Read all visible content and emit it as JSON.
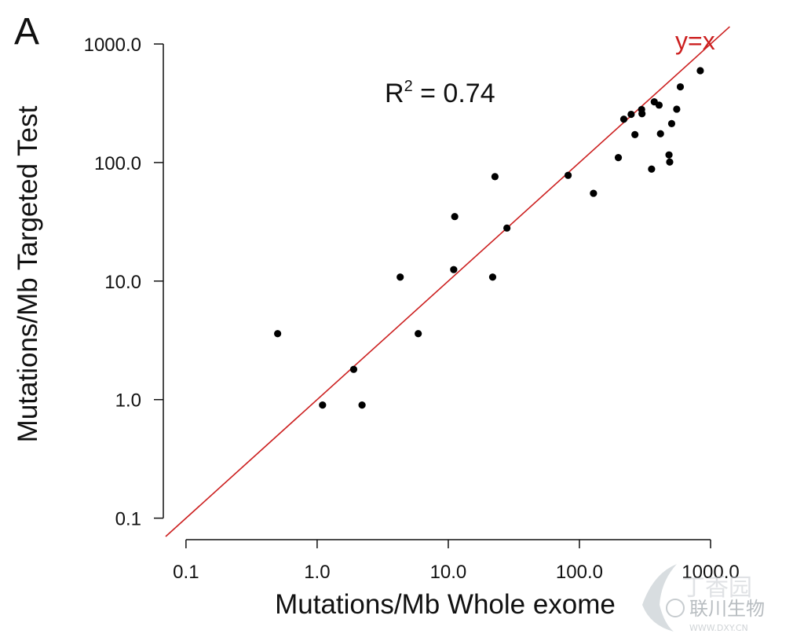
{
  "panel_label": "A",
  "chart_data": {
    "type": "scatter",
    "x_scale": "log",
    "y_scale": "log",
    "xlabel": "Mutations/Mb Whole exome",
    "ylabel": "Mutations/Mb Targeted Test",
    "xlim": [
      0.07,
      1000
    ],
    "ylim": [
      0.07,
      1000
    ],
    "x_ticks": [
      0.1,
      1,
      10,
      100,
      1000
    ],
    "x_tick_labels": [
      "0.1",
      "1.0",
      "10.0",
      "100.0",
      "1000.0"
    ],
    "y_ticks": [
      0.1,
      1,
      10,
      100,
      1000
    ],
    "y_tick_labels": [
      "0.1",
      "1.0",
      "10.0",
      "100.0",
      "1000.0"
    ],
    "annotation": {
      "r_prefix": "R",
      "r_sup": "2",
      "r_value": " = 0.74"
    },
    "reference_line": {
      "label": "y=x",
      "color": "#cc1f1f"
    },
    "point_color": "#000000",
    "points": [
      {
        "x": 0.5,
        "y": 3.6
      },
      {
        "x": 1.1,
        "y": 0.9
      },
      {
        "x": 1.9,
        "y": 1.8
      },
      {
        "x": 2.2,
        "y": 0.9
      },
      {
        "x": 4.3,
        "y": 10.8
      },
      {
        "x": 5.9,
        "y": 3.6
      },
      {
        "x": 11,
        "y": 12.5
      },
      {
        "x": 11.2,
        "y": 35
      },
      {
        "x": 21.8,
        "y": 10.8
      },
      {
        "x": 22.7,
        "y": 76
      },
      {
        "x": 28,
        "y": 28
      },
      {
        "x": 82,
        "y": 78
      },
      {
        "x": 128,
        "y": 55
      },
      {
        "x": 198,
        "y": 110
      },
      {
        "x": 218,
        "y": 232
      },
      {
        "x": 248,
        "y": 255
      },
      {
        "x": 265,
        "y": 172
      },
      {
        "x": 298,
        "y": 280
      },
      {
        "x": 300,
        "y": 258
      },
      {
        "x": 355,
        "y": 88
      },
      {
        "x": 372,
        "y": 325
      },
      {
        "x": 405,
        "y": 305
      },
      {
        "x": 415,
        "y": 175
      },
      {
        "x": 482,
        "y": 116
      },
      {
        "x": 488,
        "y": 101
      },
      {
        "x": 505,
        "y": 213
      },
      {
        "x": 552,
        "y": 282
      },
      {
        "x": 588,
        "y": 435
      },
      {
        "x": 835,
        "y": 595
      }
    ]
  },
  "watermark": {
    "text1": "丁香园",
    "text2": "联川生物",
    "text3": "WWW.DXY.CN"
  }
}
